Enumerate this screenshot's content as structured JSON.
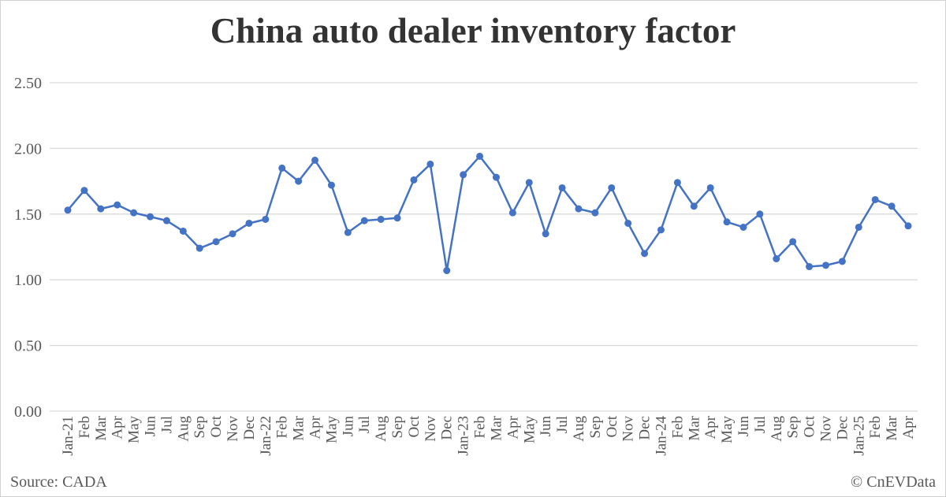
{
  "footer": {
    "source": "Source: CADA",
    "credit": "© CnEVData"
  },
  "colors": {
    "line": "#4472C4",
    "grid": "#D9D9D9",
    "text": "#595959"
  },
  "chart_data": {
    "type": "line",
    "title": "China auto dealer inventory factor",
    "xlabel": "",
    "ylabel": "",
    "ylim": [
      0,
      2.5
    ],
    "yticks": [
      "0.00",
      "0.50",
      "1.00",
      "1.50",
      "2.00",
      "2.50"
    ],
    "grid": true,
    "categories": [
      "Jan-21",
      "Feb",
      "Mar",
      "Apr",
      "May",
      "Jun",
      "Jul",
      "Aug",
      "Sep",
      "Oct",
      "Nov",
      "Dec",
      "Jan-22",
      "Feb",
      "Mar",
      "Apr",
      "May",
      "Jun",
      "Jul",
      "Aug",
      "Sep",
      "Oct",
      "Nov",
      "Dec",
      "Jan-23",
      "Feb",
      "Mar",
      "Apr",
      "May",
      "Jun",
      "Jul",
      "Aug",
      "Sep",
      "Oct",
      "Nov",
      "Dec",
      "Jan-24",
      "Feb",
      "Mar",
      "Apr",
      "May",
      "Jun",
      "Jul",
      "Aug",
      "Sep",
      "Oct",
      "Nov",
      "Dec",
      "Jan-25",
      "Feb",
      "Mar",
      "Apr"
    ],
    "series": [
      {
        "name": "Inventory factor",
        "values": [
          1.53,
          1.68,
          1.54,
          1.57,
          1.51,
          1.48,
          1.45,
          1.37,
          1.24,
          1.29,
          1.35,
          1.43,
          1.46,
          1.85,
          1.75,
          1.91,
          1.72,
          1.36,
          1.45,
          1.46,
          1.47,
          1.76,
          1.88,
          1.07,
          1.8,
          1.94,
          1.78,
          1.51,
          1.74,
          1.35,
          1.7,
          1.54,
          1.51,
          1.7,
          1.43,
          1.2,
          1.38,
          1.74,
          1.56,
          1.7,
          1.44,
          1.4,
          1.5,
          1.16,
          1.29,
          1.1,
          1.11,
          1.14,
          1.4,
          1.61,
          1.56,
          1.41
        ]
      }
    ]
  }
}
